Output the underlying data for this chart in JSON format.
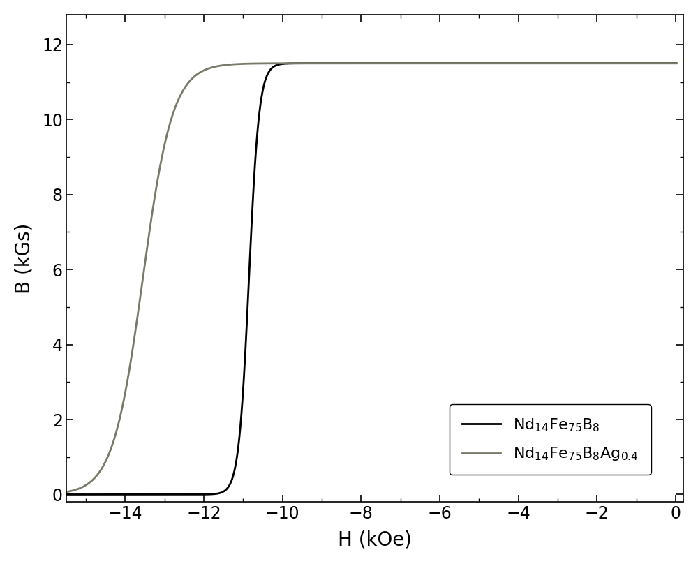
{
  "title": "",
  "xlabel": "H (kOe)",
  "ylabel": "B (kGs)",
  "xlim": [
    -15.5,
    0.2
  ],
  "ylim": [
    -0.2,
    12.8
  ],
  "xticks": [
    -14,
    -12,
    -10,
    -8,
    -6,
    -4,
    -2,
    0
  ],
  "yticks": [
    0,
    2,
    4,
    6,
    8,
    10,
    12
  ],
  "curve1_color": "#000000",
  "curve2_color": "#7a7a68",
  "legend1": "$\\mathrm{Nd_{14}Fe_{75}B_8}$",
  "legend2": "$\\mathrm{Nd_{14}Fe_{75}B_8Ag_{0.4}}$",
  "Bsat": 11.5,
  "coercivity_black": -10.85,
  "steepness_black": 0.13,
  "coercivity_gray": -13.55,
  "steepness_gray": 0.38,
  "xlabel_fontsize": 20,
  "ylabel_fontsize": 20,
  "tick_fontsize": 17,
  "legend_fontsize": 16,
  "linewidth": 2.0
}
